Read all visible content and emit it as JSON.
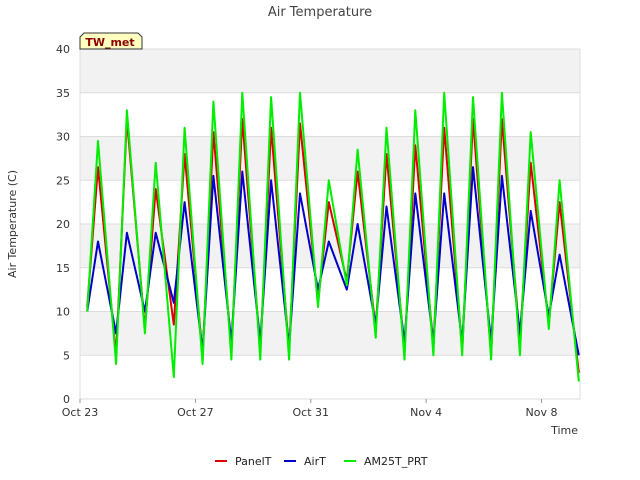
{
  "chart_data": {
    "type": "line",
    "title": "Air Temperature",
    "badge": "TW_met",
    "xlabel": "Time",
    "ylabel": "Air Temperature (C)",
    "ylim": [
      0,
      40
    ],
    "yticks": [
      0,
      5,
      10,
      15,
      20,
      25,
      30,
      35,
      40
    ],
    "xlim": [
      "2023-10-23",
      "2023-11-09T08:00"
    ],
    "xticks": [
      {
        "date": "2023-10-23",
        "label": "Oct 23"
      },
      {
        "date": "2023-10-27",
        "label": "Oct 27"
      },
      {
        "date": "2023-10-31",
        "label": "Oct 31"
      },
      {
        "date": "2023-11-04",
        "label": "Nov 4"
      },
      {
        "date": "2023-11-08",
        "label": "Nov 8"
      }
    ],
    "grid": true,
    "legend_position": "bottom",
    "x": [
      "2023-10-23T06:00",
      "2023-10-23T15:00",
      "2023-10-24T06:00",
      "2023-10-24T15:00",
      "2023-10-25T06:00",
      "2023-10-25T15:00",
      "2023-10-26T06:00",
      "2023-10-26T15:00",
      "2023-10-27T06:00",
      "2023-10-27T15:00",
      "2023-10-28T06:00",
      "2023-10-28T15:00",
      "2023-10-29T06:00",
      "2023-10-29T15:00",
      "2023-10-30T06:00",
      "2023-10-30T15:00",
      "2023-10-31T06:00",
      "2023-10-31T15:00",
      "2023-11-01T06:00",
      "2023-11-01T15:00",
      "2023-11-02T06:00",
      "2023-11-02T15:00",
      "2023-11-03T06:00",
      "2023-11-03T15:00",
      "2023-11-04T06:00",
      "2023-11-04T15:00",
      "2023-11-05T06:00",
      "2023-11-05T15:00",
      "2023-11-06T06:00",
      "2023-11-06T15:00",
      "2023-11-07T06:00",
      "2023-11-07T15:00",
      "2023-11-08T06:00",
      "2023-11-08T15:00",
      "2023-11-09T07:00"
    ],
    "series": [
      {
        "name": "PanelT",
        "color": "#dd0000",
        "values": [
          10.5,
          26.5,
          5.0,
          32.0,
          8.0,
          24.0,
          8.5,
          28.0,
          5.0,
          30.5,
          5.5,
          32.0,
          5.5,
          31.0,
          5.5,
          31.5,
          11.0,
          22.5,
          13.5,
          26.0,
          8.0,
          28.0,
          5.5,
          29.0,
          6.0,
          31.0,
          5.5,
          32.0,
          5.0,
          32.0,
          6.5,
          27.0,
          8.5,
          22.5,
          3.0
        ]
      },
      {
        "name": "AirT",
        "color": "#0000cc",
        "values": [
          10.0,
          18.0,
          7.5,
          19.0,
          10.0,
          19.0,
          11.0,
          22.5,
          5.5,
          25.5,
          6.5,
          26.0,
          6.5,
          25.0,
          6.0,
          23.5,
          12.5,
          18.0,
          12.5,
          20.0,
          8.5,
          22.0,
          6.5,
          23.5,
          6.5,
          23.5,
          6.5,
          26.5,
          6.5,
          25.5,
          7.5,
          21.5,
          9.5,
          16.5,
          5.0
        ]
      },
      {
        "name": "AM25T_PRT",
        "color": "#00ee00",
        "values": [
          10.0,
          29.5,
          4.0,
          33.0,
          7.5,
          27.0,
          2.5,
          31.0,
          4.0,
          34.0,
          4.5,
          35.0,
          4.5,
          34.5,
          4.5,
          35.0,
          10.5,
          25.0,
          13.0,
          28.5,
          7.0,
          31.0,
          4.5,
          33.0,
          5.0,
          35.0,
          5.0,
          34.5,
          4.5,
          35.0,
          5.0,
          30.5,
          8.0,
          25.0,
          2.0
        ]
      }
    ]
  }
}
